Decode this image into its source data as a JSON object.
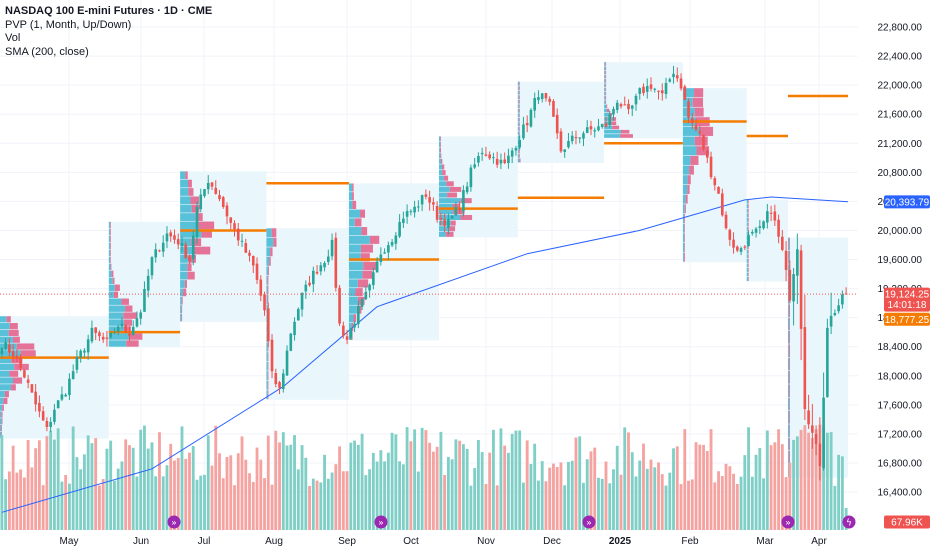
{
  "legend": {
    "title": "NASDAQ 100 E-mini Futures · 1D · CME",
    "line2": "PVP (1, Month, Up/Down)",
    "line3": "Vol",
    "line4": "SMA (200, close)"
  },
  "colors": {
    "up": "#26a69a",
    "down": "#ef5350",
    "up_vol": "#7fcfc7",
    "down_vol": "#f5a3a1",
    "sma": "#2962ff",
    "poc": "#f57c00",
    "vp_up": "#59c0d9",
    "vp_down": "#e57398",
    "shade": "#e9f6fb",
    "grid": "#f0f3fa",
    "text": "#131722"
  },
  "chart_data": {
    "type": "candlestick",
    "title": "NASDAQ 100 E-mini Futures · 1D · CME",
    "x_labels": [
      "May",
      "Jun",
      "Jul",
      "Aug",
      "Sep",
      "Oct",
      "Nov",
      "Dec",
      "2025",
      "Feb",
      "Mar",
      "Apr"
    ],
    "y_ticks": [
      "22,800.00",
      "22,400.00",
      "22,000.00",
      "21,600.00",
      "21,200.00",
      "20,800.00",
      "20,400.00",
      "20,000.00",
      "19,600.00",
      "19,200.00",
      "18,800.00",
      "18,400.00",
      "18,000.00",
      "17,600.00",
      "17,200.00",
      "16,800.00",
      "16,400.00"
    ],
    "ylim": [
      16000,
      23200
    ],
    "close_path": [
      [
        0,
        18450
      ],
      [
        3,
        18300
      ],
      [
        6,
        18000
      ],
      [
        9,
        17600
      ],
      [
        12,
        17250
      ],
      [
        14,
        17550
      ],
      [
        17,
        17800
      ],
      [
        20,
        18200
      ],
      [
        24,
        18600
      ],
      [
        28,
        18450
      ],
      [
        31,
        18700
      ],
      [
        34,
        18600
      ],
      [
        37,
        18900
      ],
      [
        40,
        19600
      ],
      [
        44,
        19950
      ],
      [
        47,
        19850
      ],
      [
        50,
        19600
      ],
      [
        52,
        20300
      ],
      [
        55,
        20700
      ],
      [
        58,
        20450
      ],
      [
        61,
        20100
      ],
      [
        64,
        19800
      ],
      [
        67,
        19500
      ],
      [
        70,
        18900
      ],
      [
        72,
        18000
      ],
      [
        74,
        17800
      ],
      [
        77,
        18600
      ],
      [
        80,
        19100
      ],
      [
        83,
        19400
      ],
      [
        86,
        19600
      ],
      [
        88,
        19800
      ],
      [
        90,
        18700
      ],
      [
        92,
        18500
      ],
      [
        95,
        18900
      ],
      [
        98,
        19200
      ],
      [
        101,
        19700
      ],
      [
        104,
        19900
      ],
      [
        107,
        20200
      ],
      [
        110,
        20300
      ],
      [
        113,
        20500
      ],
      [
        116,
        20200
      ],
      [
        119,
        20100
      ],
      [
        122,
        20350
      ],
      [
        125,
        20800
      ],
      [
        128,
        21100
      ],
      [
        131,
        21000
      ],
      [
        134,
        20900
      ],
      [
        137,
        21200
      ],
      [
        140,
        21500
      ],
      [
        143,
        21900
      ],
      [
        146,
        21700
      ],
      [
        149,
        21100
      ],
      [
        152,
        21250
      ],
      [
        155,
        21350
      ],
      [
        158,
        21400
      ],
      [
        161,
        21450
      ],
      [
        164,
        21800
      ],
      [
        167,
        21600
      ],
      [
        170,
        21900
      ],
      [
        173,
        22000
      ],
      [
        176,
        21850
      ],
      [
        179,
        22200
      ],
      [
        181,
        22000
      ],
      [
        183,
        21550
      ],
      [
        186,
        21300
      ],
      [
        189,
        20800
      ],
      [
        191,
        20500
      ],
      [
        193,
        20000
      ],
      [
        196,
        19700
      ],
      [
        199,
        19900
      ],
      [
        202,
        20000
      ],
      [
        205,
        20300
      ],
      [
        208,
        19700
      ],
      [
        210,
        19100
      ],
      [
        212,
        19800
      ],
      [
        214,
        17600
      ],
      [
        216,
        17200
      ],
      [
        218,
        16800
      ],
      [
        220,
        18700
      ],
      [
        222,
        18900
      ],
      [
        225,
        19124.25
      ]
    ],
    "sma_200": [
      [
        0,
        16120
      ],
      [
        40,
        16720
      ],
      [
        75,
        17850
      ],
      [
        100,
        18950
      ],
      [
        140,
        19680
      ],
      [
        170,
        20000
      ],
      [
        198,
        20420
      ],
      [
        205,
        20460
      ],
      [
        225,
        20393.79
      ]
    ],
    "volume_axis_max": 500000,
    "price_labels": [
      {
        "label": "20,393.79",
        "series": "SMA (200, close)"
      },
      {
        "label": "19,124.25",
        "series": "Last price",
        "countdown": "14:01:18"
      },
      {
        "label": "18,777.25",
        "series": "PVP POC"
      },
      {
        "label": "67.96K",
        "series": "Vol"
      }
    ],
    "vp_poc_levels": [
      18250,
      18600,
      20000,
      20650,
      19600,
      20300,
      20450,
      21200,
      21500,
      21300,
      21850,
      20050,
      18750
    ],
    "grid": true,
    "legend_position": "top-left"
  }
}
